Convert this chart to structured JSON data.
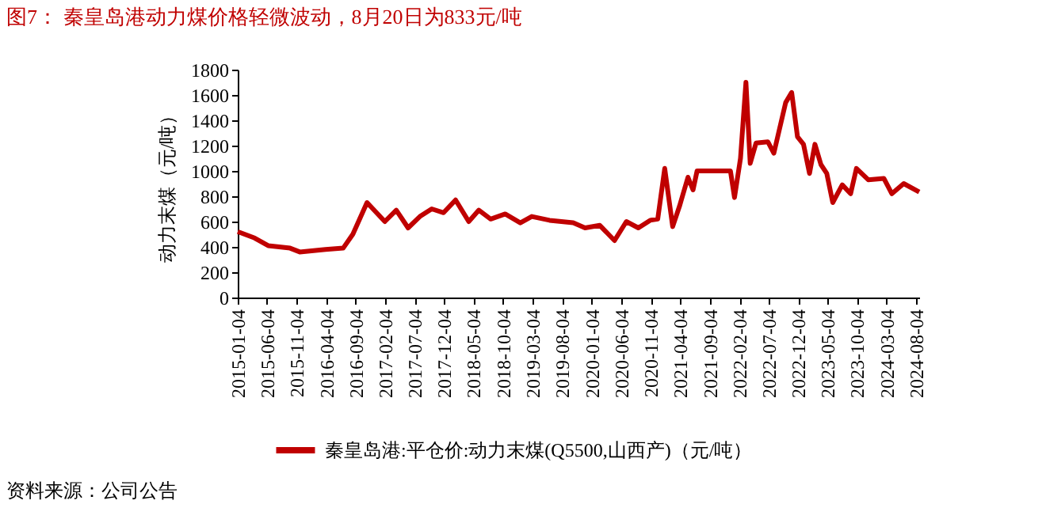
{
  "chart_data": {
    "type": "line",
    "title": "图7：  秦皇岛港动力煤价格轻微波动，8月20日为833元/吨",
    "ylabel": "动力末煤（元/吨）",
    "annotations": [
      "资料来源：公司公告"
    ],
    "x": [
      "2015-01-04",
      "2015-04-01",
      "2015-06-10",
      "2015-10-01",
      "2015-11-20",
      "2016-04-01",
      "2016-07-01",
      "2016-08-20",
      "2016-11-01",
      "2017-02-01",
      "2017-04-01",
      "2017-06-01",
      "2017-08-01",
      "2017-10-01",
      "2017-12-01",
      "2018-02-01",
      "2018-04-10",
      "2018-06-01",
      "2018-08-01",
      "2018-10-15",
      "2019-01-01",
      "2019-03-01",
      "2019-06-01",
      "2019-10-01",
      "2019-12-01",
      "2020-02-15",
      "2020-05-01",
      "2020-07-01",
      "2020-09-01",
      "2020-11-01",
      "2020-12-10",
      "2021-01-15",
      "2021-02-25",
      "2021-04-01",
      "2021-05-15",
      "2021-06-10",
      "2021-07-01",
      "2021-12-20",
      "2022-01-10",
      "2022-02-10",
      "2022-03-10",
      "2022-04-01",
      "2022-05-01",
      "2022-07-01",
      "2022-08-01",
      "2022-10-01",
      "2022-11-01",
      "2022-12-01",
      "2023-01-01",
      "2023-02-01",
      "2023-03-01",
      "2023-04-01",
      "2023-05-01",
      "2023-06-01",
      "2023-07-20",
      "2023-09-01",
      "2023-10-01",
      "2023-12-01",
      "2024-02-20",
      "2024-04-01",
      "2024-06-01",
      "2024-08-20"
    ],
    "series": [
      {
        "name": "秦皇岛港:平仓价:动力末煤(Q5500,山西产)（元/吨）",
        "color": "#c00000",
        "values": [
          520,
          470,
          410,
          390,
          360,
          380,
          390,
          500,
          750,
          600,
          690,
          550,
          640,
          700,
          670,
          770,
          600,
          690,
          620,
          660,
          590,
          640,
          610,
          590,
          550,
          570,
          450,
          600,
          550,
          610,
          620,
          1020,
          560,
          720,
          950,
          850,
          1000,
          1000,
          790,
          1100,
          1700,
          1060,
          1220,
          1230,
          1140,
          1540,
          1620,
          1270,
          1210,
          980,
          1210,
          1050,
          980,
          750,
          890,
          820,
          1020,
          930,
          940,
          820,
          900,
          833
        ]
      }
    ],
    "xlim": [
      "2015-01-04",
      "2024-08-20"
    ],
    "xticks": [
      "2015-01-04",
      "2015-06-04",
      "2015-11-04",
      "2016-04-04",
      "2016-09-04",
      "2017-02-04",
      "2017-07-04",
      "2017-12-04",
      "2018-05-04",
      "2018-10-04",
      "2019-03-04",
      "2019-08-04",
      "2020-01-04",
      "2020-06-04",
      "2020-11-04",
      "2021-04-04",
      "2021-09-04",
      "2022-02-04",
      "2022-07-04",
      "2022-12-04",
      "2023-05-04",
      "2023-10-04",
      "2024-03-04",
      "2024-08-04"
    ],
    "ylim": [
      0,
      1800
    ],
    "yticks": [
      0,
      200,
      400,
      600,
      800,
      1000,
      1200,
      1400,
      1600,
      1800
    ],
    "grid": false,
    "legend": "bottom",
    "line_style": "solid",
    "marker": "none"
  }
}
